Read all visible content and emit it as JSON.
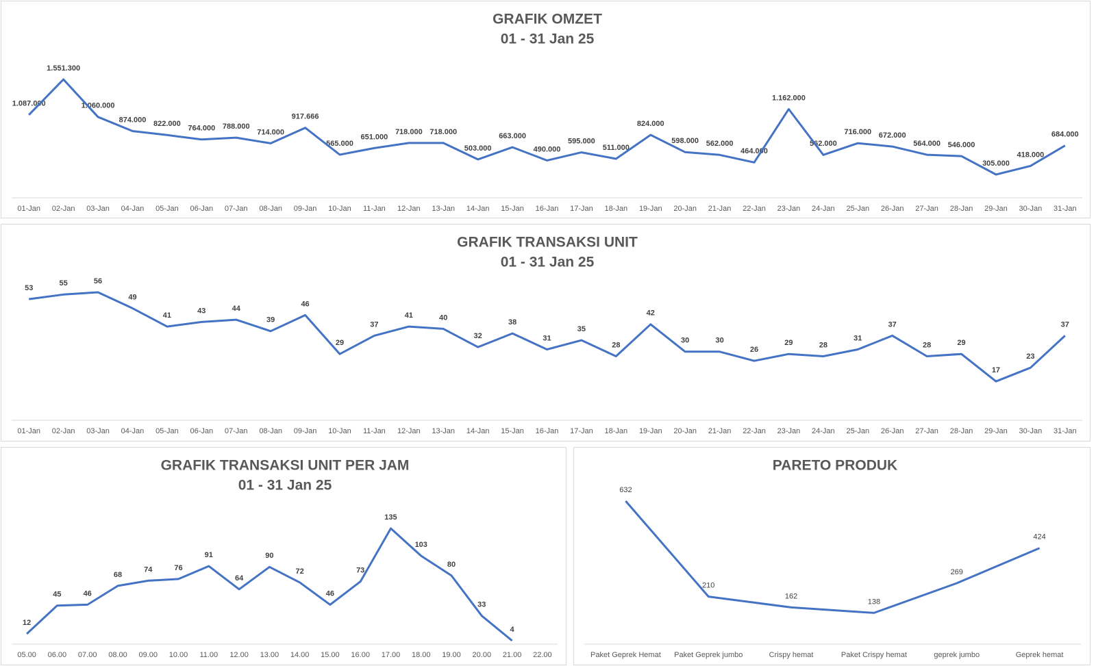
{
  "chart_data": [
    {
      "type": "line",
      "title": "GRAFIK OMZET",
      "subtitle": "01 - 31 Jan 25",
      "categories": [
        "01-Jan",
        "02-Jan",
        "03-Jan",
        "04-Jan",
        "05-Jan",
        "06-Jan",
        "07-Jan",
        "08-Jan",
        "09-Jan",
        "10-Jan",
        "11-Jan",
        "12-Jan",
        "13-Jan",
        "14-Jan",
        "15-Jan",
        "16-Jan",
        "17-Jan",
        "18-Jan",
        "19-Jan",
        "20-Jan",
        "21-Jan",
        "22-Jan",
        "23-Jan",
        "24-Jan",
        "25-Jan",
        "26-Jan",
        "27-Jan",
        "28-Jan",
        "29-Jan",
        "30-Jan",
        "31-Jan"
      ],
      "values": [
        1087000,
        1551300,
        1060000,
        874000,
        822000,
        764000,
        788000,
        714000,
        917666,
        565000,
        651000,
        718000,
        718000,
        503000,
        663000,
        490000,
        595000,
        511000,
        824000,
        598000,
        562000,
        464000,
        1162000,
        562000,
        716000,
        672000,
        564000,
        546000,
        305000,
        418000,
        684000
      ],
      "value_labels": [
        "1.087.000",
        "1.551.300",
        "1.060.000",
        "874.000",
        "822.000",
        "764.000",
        "788.000",
        "714.000",
        "917.666",
        "565.000",
        "651.000",
        "718.000",
        "718.000",
        "503.000",
        "663.000",
        "490.000",
        "595.000",
        "511.000",
        "824.000",
        "598.000",
        "562.000",
        "464.000",
        "1.162.000",
        "562.000",
        "716.000",
        "672.000",
        "564.000",
        "546.000",
        "305.000",
        "418.000",
        "684.000"
      ],
      "color": "#4472c4"
    },
    {
      "type": "line",
      "title": "GRAFIK TRANSAKSI UNIT",
      "subtitle": "01 - 31 Jan 25",
      "categories": [
        "01-Jan",
        "02-Jan",
        "03-Jan",
        "04-Jan",
        "05-Jan",
        "06-Jan",
        "07-Jan",
        "08-Jan",
        "09-Jan",
        "10-Jan",
        "11-Jan",
        "12-Jan",
        "13-Jan",
        "14-Jan",
        "15-Jan",
        "16-Jan",
        "17-Jan",
        "18-Jan",
        "19-Jan",
        "20-Jan",
        "21-Jan",
        "22-Jan",
        "23-Jan",
        "24-Jan",
        "25-Jan",
        "26-Jan",
        "27-Jan",
        "28-Jan",
        "29-Jan",
        "30-Jan",
        "31-Jan"
      ],
      "values": [
        53,
        55,
        56,
        49,
        41,
        43,
        44,
        39,
        46,
        29,
        37,
        41,
        40,
        32,
        38,
        31,
        35,
        28,
        42,
        30,
        30,
        26,
        29,
        28,
        31,
        37,
        28,
        29,
        17,
        23,
        37
      ],
      "color": "#4472c4"
    },
    {
      "type": "line",
      "title": "GRAFIK TRANSAKSI UNIT PER JAM",
      "subtitle": "01 - 31 Jan 25",
      "categories": [
        "05.00",
        "06.00",
        "07.00",
        "08.00",
        "09.00",
        "10.00",
        "11.00",
        "12.00",
        "13.00",
        "14.00",
        "15.00",
        "16.00",
        "17.00",
        "18.00",
        "19.00",
        "20.00",
        "21.00",
        "22.00"
      ],
      "values": [
        12,
        45,
        46,
        68,
        74,
        76,
        91,
        64,
        90,
        72,
        46,
        73,
        135,
        103,
        80,
        33,
        4,
        null
      ],
      "color": "#4472c4"
    },
    {
      "type": "line",
      "title": "PARETO PRODUK",
      "categories": [
        "Paket Geprek Hemat",
        "Paket Geprek jumbo",
        "Crispy hemat",
        "Paket Crispy hemat",
        "geprek jumbo",
        "Geprek hemat"
      ],
      "values": [
        632,
        210,
        162,
        138,
        269,
        424
      ],
      "color": "#4472c4"
    }
  ]
}
